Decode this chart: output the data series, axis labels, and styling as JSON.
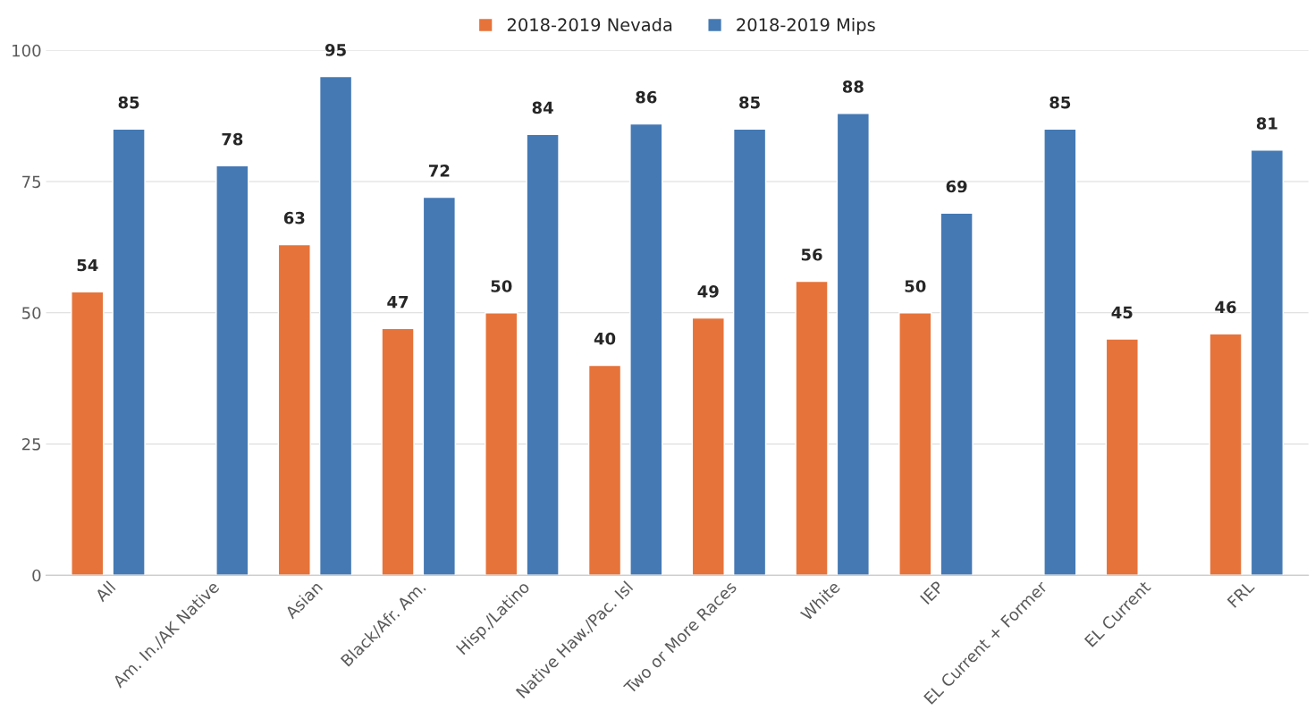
{
  "chart_data": {
    "type": "bar",
    "categories": [
      "All",
      "Am. In./AK Native",
      "Asian",
      "Black/Afr. Am.",
      "Hisp./Latino",
      "Native Haw./Pac. Isl",
      "Two or More Races",
      "White",
      "IEP",
      "EL Current + Former",
      "EL Current",
      "FRL"
    ],
    "series": [
      {
        "name": "2018-2019 Nevada",
        "color": "#e6733a",
        "values": [
          54,
          null,
          63,
          47,
          50,
          40,
          49,
          56,
          50,
          null,
          45,
          46
        ]
      },
      {
        "name": "2018-2019 Mips",
        "color": "#4479b4",
        "values": [
          85,
          78,
          95,
          72,
          84,
          86,
          85,
          88,
          69,
          85,
          null,
          81
        ]
      }
    ],
    "ylim": [
      0,
      100
    ],
    "yticks": [
      0,
      25,
      50,
      75,
      100
    ],
    "grid": "y",
    "legend": "top",
    "data_labels": true
  }
}
